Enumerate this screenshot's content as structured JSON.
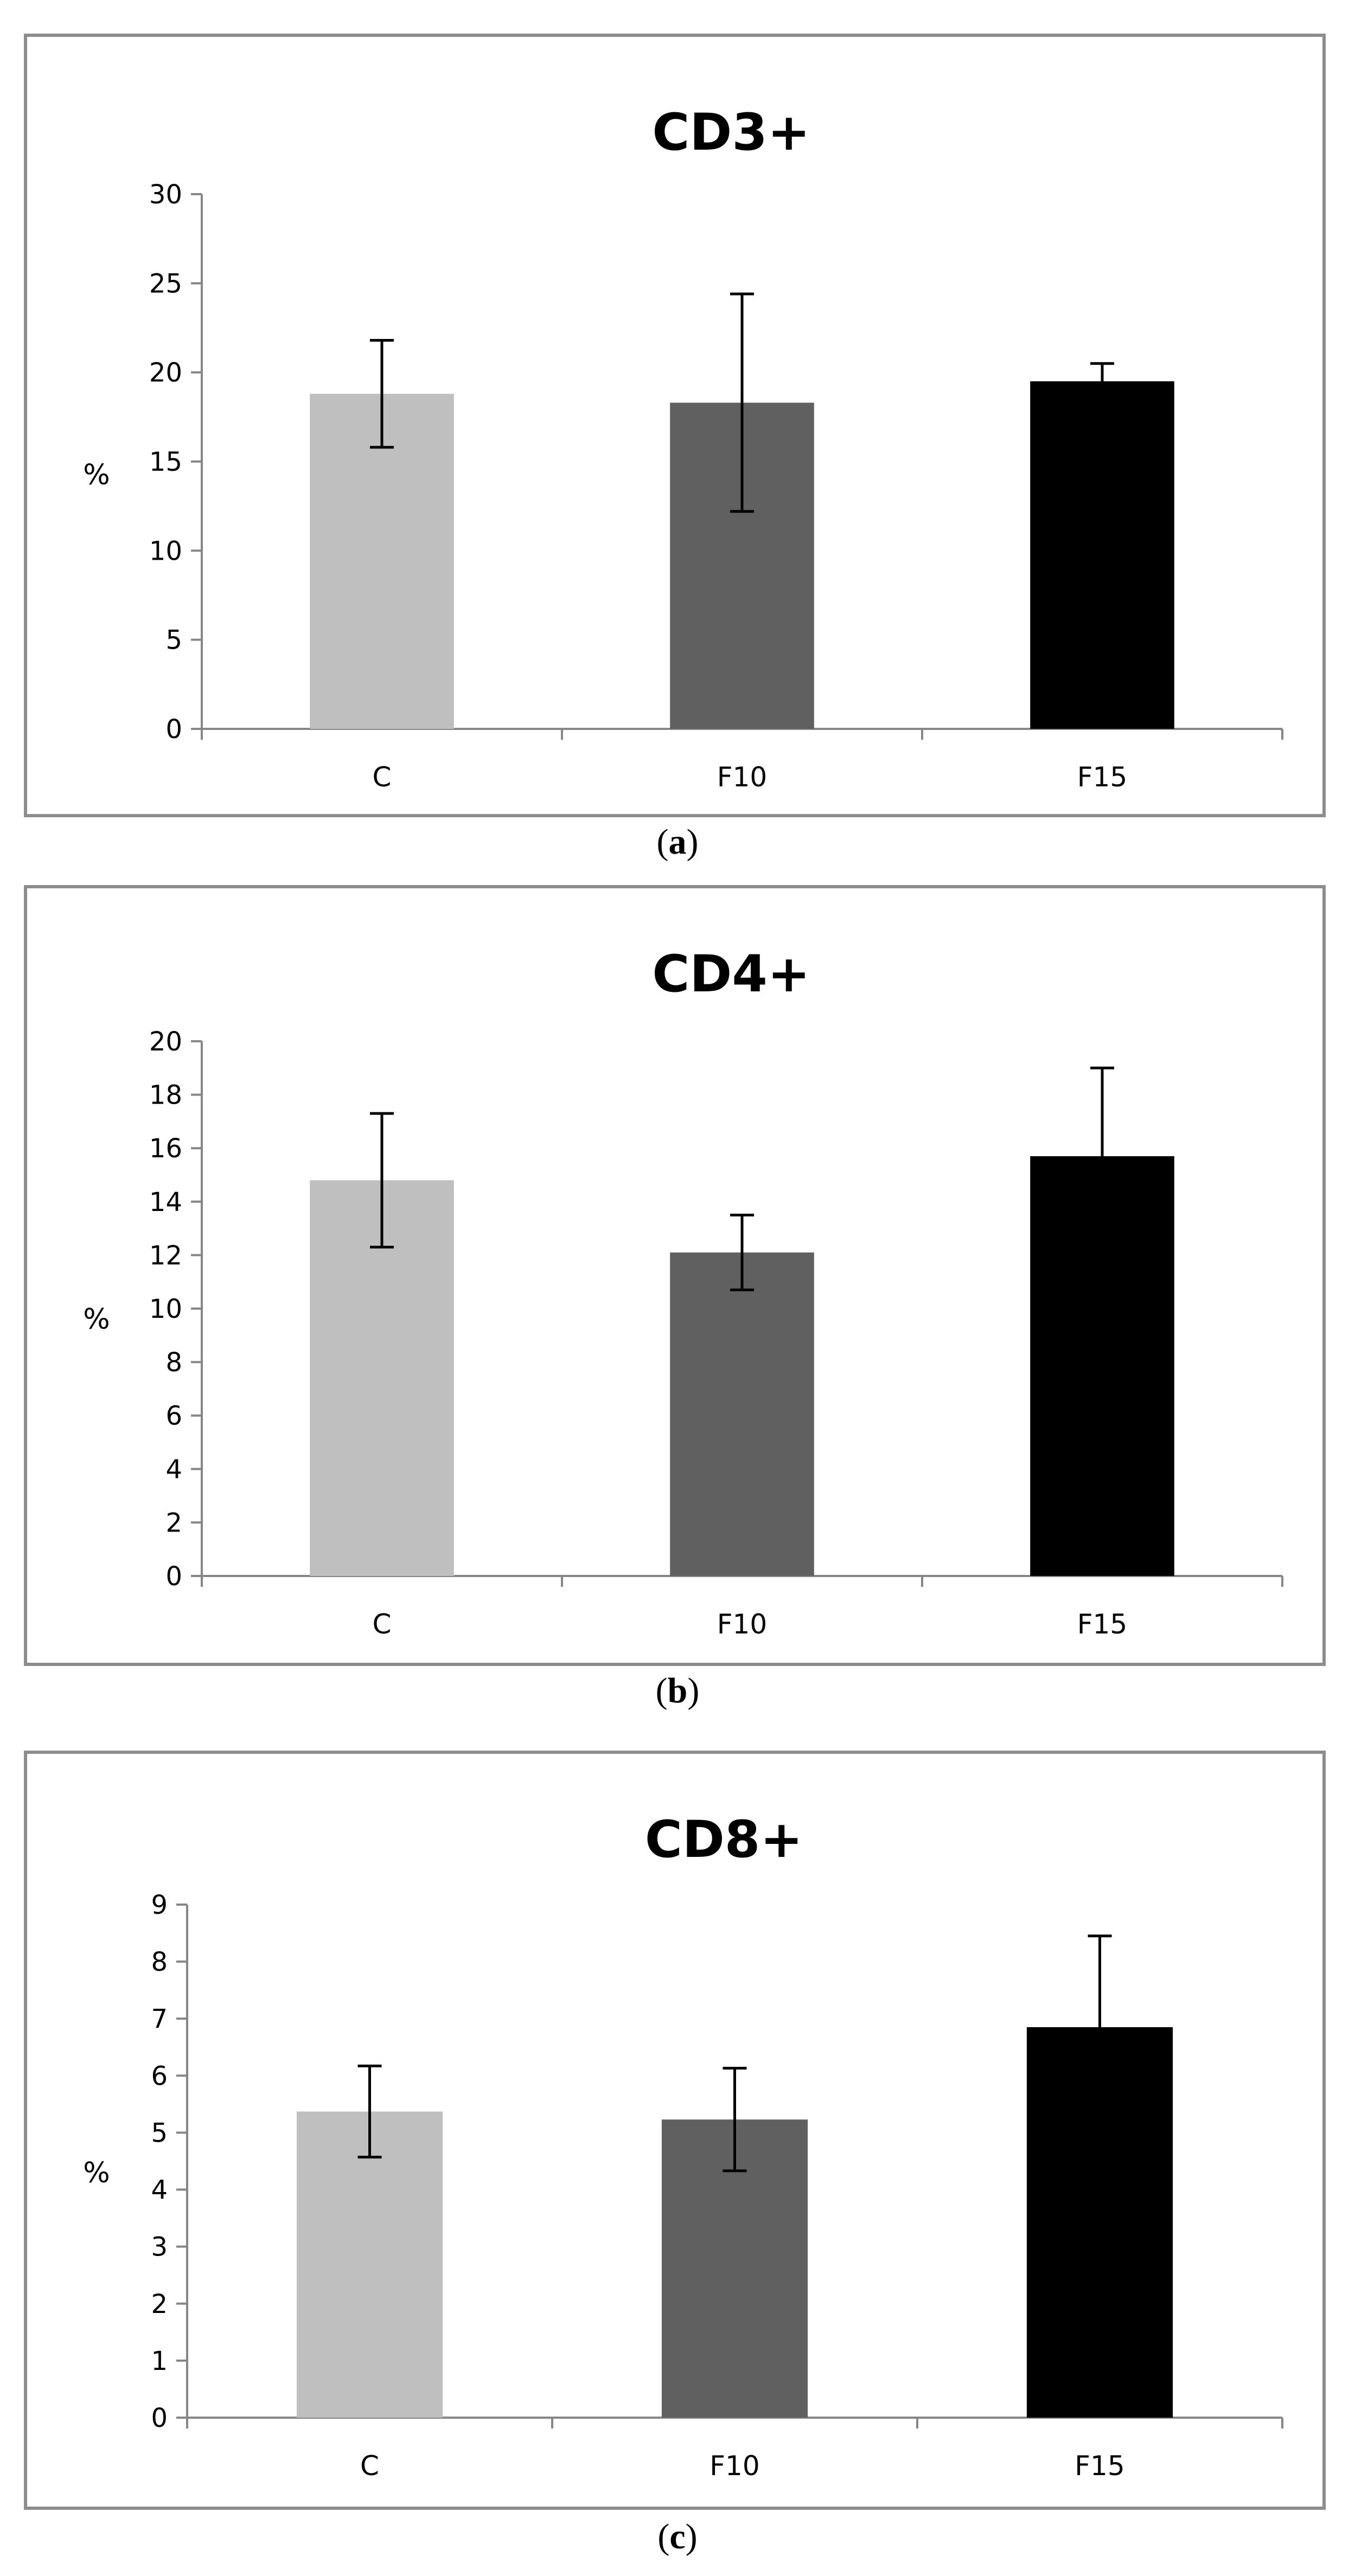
{
  "chart_data": [
    {
      "type": "bar",
      "title": "CD3+",
      "ylabel": "%",
      "xlabel": "",
      "categories": [
        "C",
        "F10",
        "F15"
      ],
      "values": [
        18.8,
        18.3,
        19.5
      ],
      "error": [
        3.0,
        6.1,
        1.0
      ],
      "ylim": [
        0,
        30
      ],
      "yticks": [
        "0",
        "5",
        "10",
        "15",
        "20",
        "25",
        "30"
      ],
      "grid": false,
      "legend": "none",
      "caption": {
        "open": "(",
        "letter": "a",
        "close": ")"
      }
    },
    {
      "type": "bar",
      "title": "CD4+",
      "ylabel": "%",
      "xlabel": "",
      "categories": [
        "C",
        "F10",
        "F15"
      ],
      "values": [
        14.8,
        12.1,
        15.7
      ],
      "error": [
        2.5,
        1.4,
        3.3
      ],
      "ylim": [
        0,
        20
      ],
      "yticks": [
        "0",
        "2",
        "4",
        "6",
        "8",
        "10",
        "12",
        "14",
        "16",
        "18",
        "20"
      ],
      "grid": false,
      "legend": "none",
      "caption": {
        "open": "(",
        "letter": "b",
        "close": ")"
      }
    },
    {
      "type": "bar",
      "title": "CD8+",
      "ylabel": "%",
      "xlabel": "",
      "categories": [
        "C",
        "F10",
        "F15"
      ],
      "values": [
        5.37,
        5.23,
        6.85
      ],
      "error": [
        0.8,
        0.9,
        1.6
      ],
      "ylim": [
        0,
        9
      ],
      "yticks": [
        "0",
        "1",
        "2",
        "3",
        "4",
        "5",
        "6",
        "7",
        "8",
        "9"
      ],
      "grid": false,
      "legend": "none",
      "caption": {
        "open": "(",
        "letter": "c",
        "close": ")"
      }
    }
  ],
  "colors": {
    "bar_c": "#bfbfbf",
    "bar_f10": "#606060",
    "bar_f15": "#000000",
    "frame": "#8c8c8c",
    "axis": "#868686"
  }
}
